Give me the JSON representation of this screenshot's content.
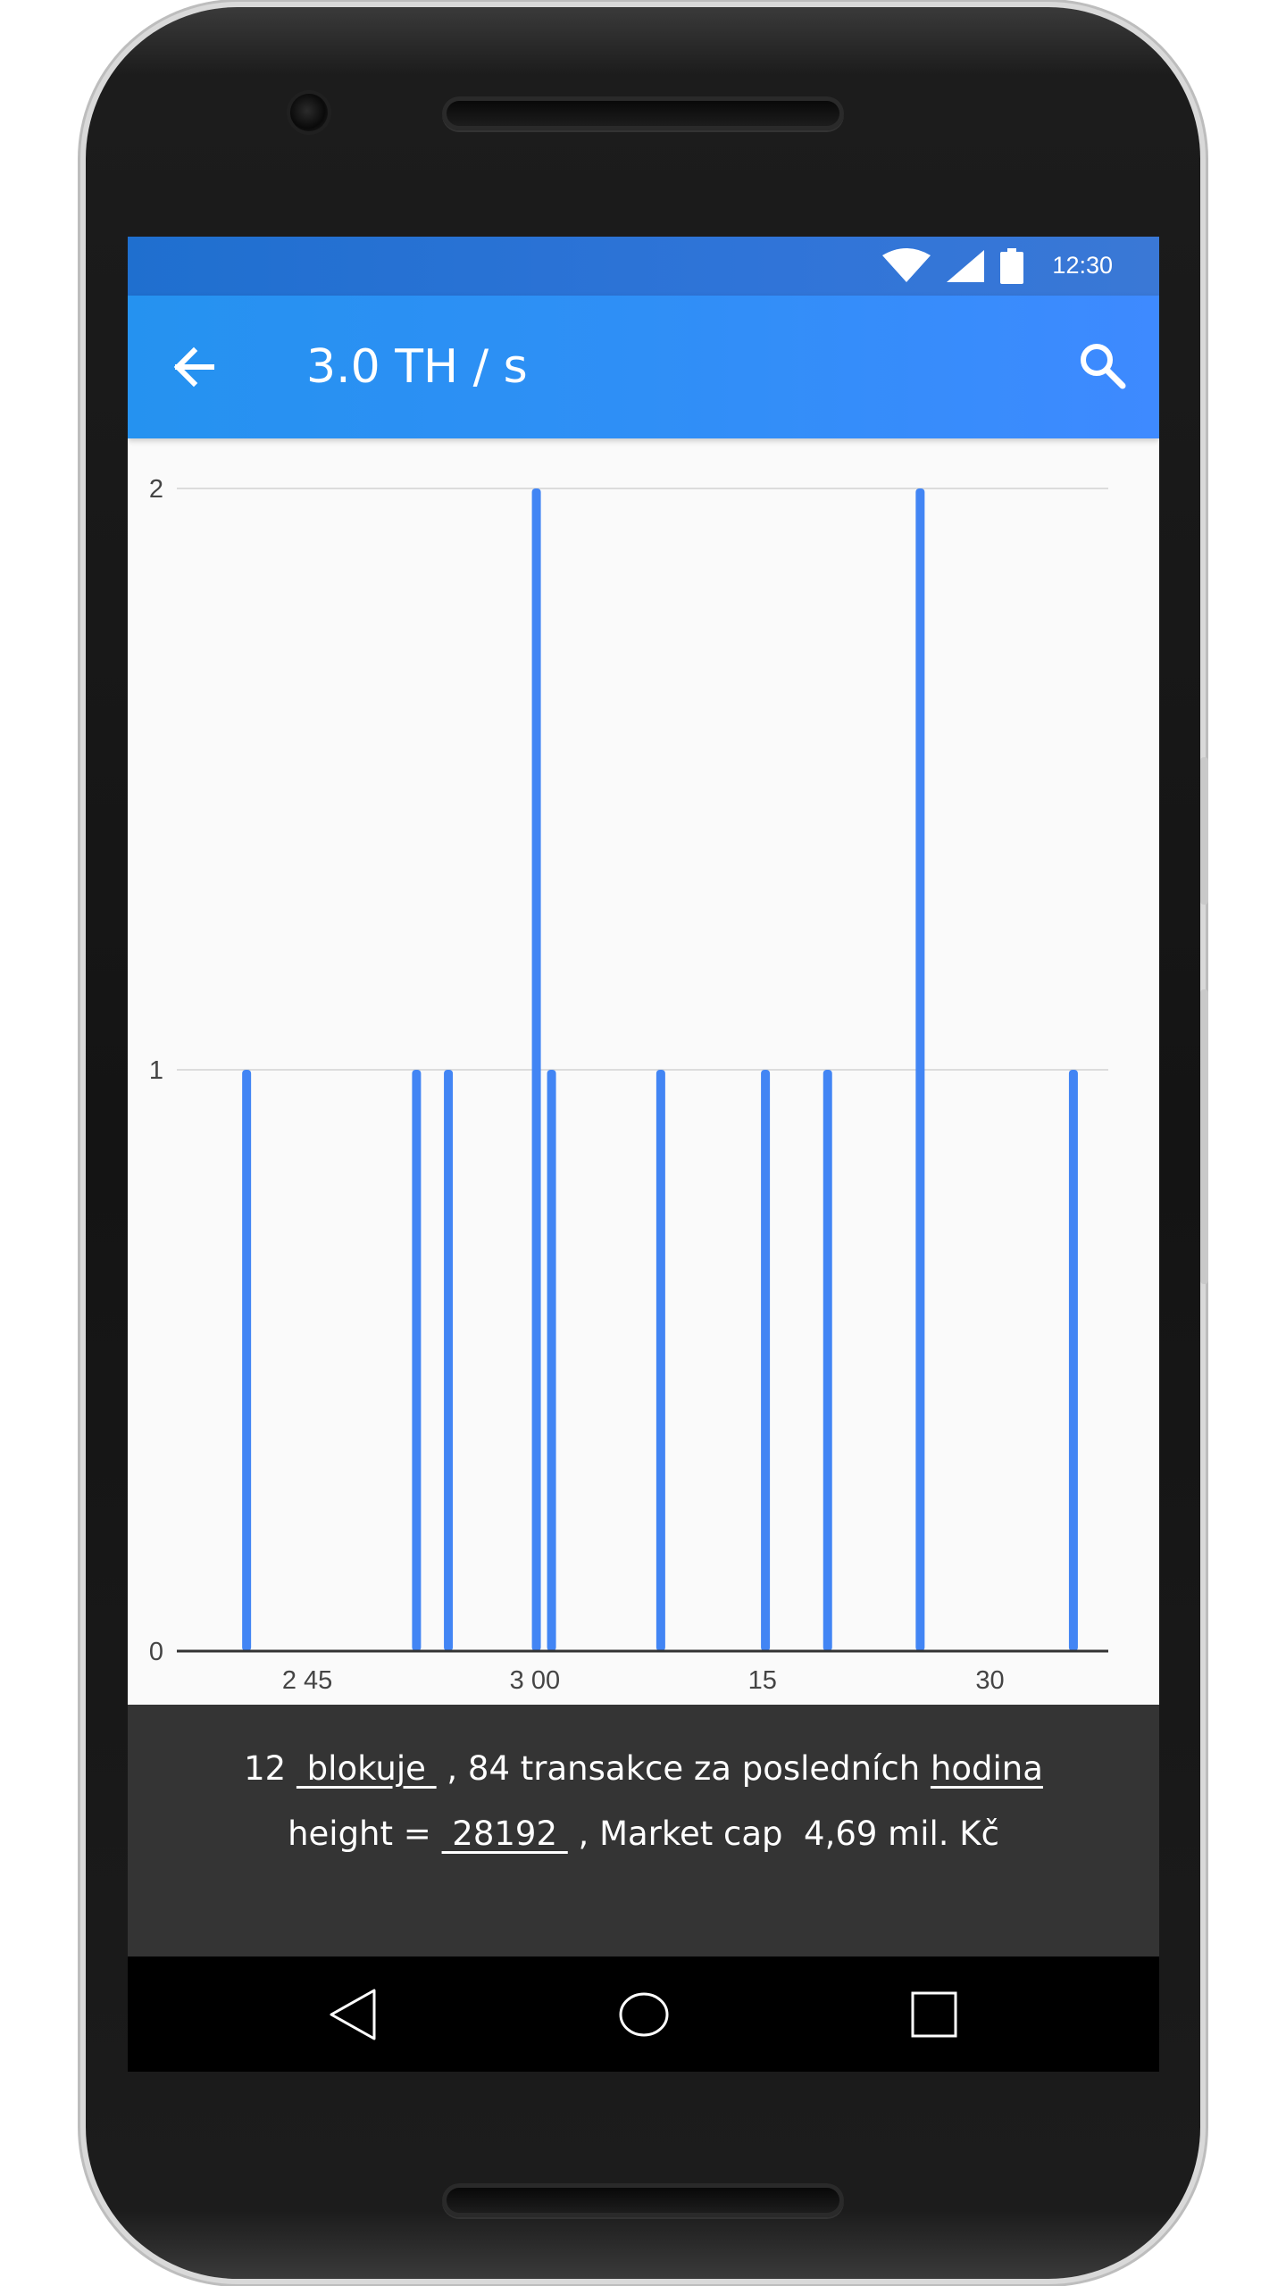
{
  "status_bar": {
    "time": "12:30",
    "icons": [
      "wifi-icon",
      "cellular-signal-icon",
      "battery-icon"
    ]
  },
  "app_bar": {
    "title": "3.0 TH / s",
    "back_icon": "arrow-left-icon",
    "search_icon": "search-icon"
  },
  "chart_data": {
    "type": "bar",
    "x_tick_labels": [
      "2 45",
      "3 00",
      "15",
      "30"
    ],
    "x_ticks": [
      45,
      60,
      75,
      90
    ],
    "xlim": [
      36.4,
      97.8
    ],
    "y_tick_labels": [
      "0",
      "1",
      "2"
    ],
    "ylim": [
      0,
      2
    ],
    "grid": true,
    "bars": [
      {
        "x": 41,
        "value": 1
      },
      {
        "x": 52.2,
        "value": 1
      },
      {
        "x": 54.3,
        "value": 1
      },
      {
        "x": 60.1,
        "value": 2
      },
      {
        "x": 61.1,
        "value": 1
      },
      {
        "x": 68.3,
        "value": 1
      },
      {
        "x": 75.2,
        "value": 1
      },
      {
        "x": 79.3,
        "value": 1
      },
      {
        "x": 85.4,
        "value": 2
      },
      {
        "x": 95.5,
        "value": 1
      }
    ],
    "bar_color": "#4285f4"
  },
  "info": {
    "blocks_count": "12",
    "blocks_link": " blokuje ",
    "tx_text": ", 84 transakce za posledních",
    "period_link": "hodina",
    "height_label": "height =",
    "height_link": " 28192 ",
    "market_cap_text": ", Market cap  4,69 mil. Kč"
  },
  "nav_bar": {
    "icons": [
      "nav-back-triangle-icon",
      "nav-home-circle-icon",
      "nav-recents-square-icon"
    ]
  },
  "colors": {
    "status_bar": "#2f74d8",
    "app_bar": "#2f8ff6",
    "info_panel": "#343434",
    "nav_bar": "#000000"
  }
}
